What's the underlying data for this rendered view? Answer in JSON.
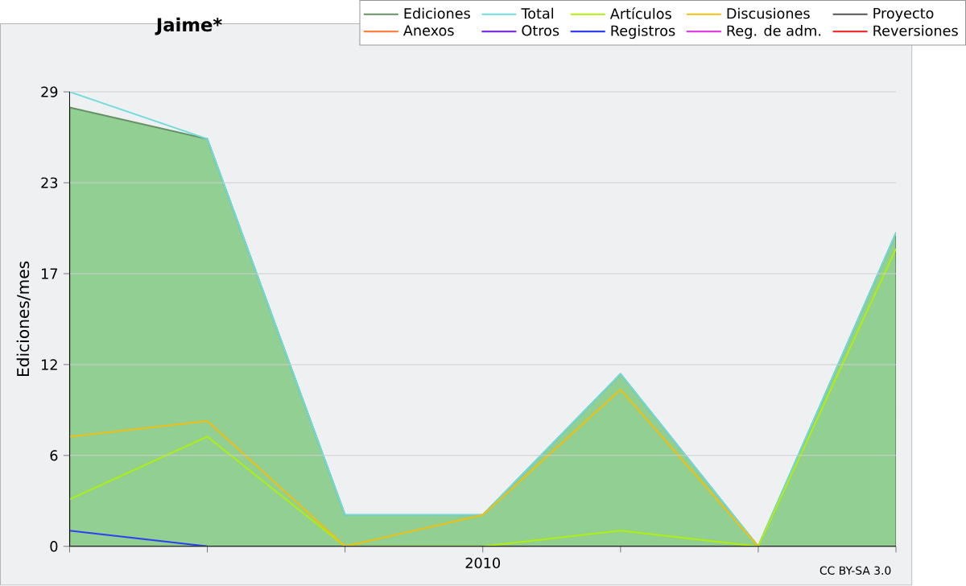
{
  "chart_data": {
    "type": "line",
    "title": "Jaime*",
    "ylabel": "Ediciones/mes",
    "annotations": [
      "CC BY-SA 3.0"
    ],
    "categories": [
      null,
      null,
      null,
      "2010",
      null,
      null,
      null
    ],
    "ylim": [
      0,
      29
    ],
    "yticks": [
      0,
      {
        "value": 5.8,
        "label": "6"
      },
      {
        "value": 11.6,
        "label": "12"
      },
      {
        "value": 17.4,
        "label": "17"
      },
      {
        "value": 23.2,
        "label": "23"
      },
      29
    ],
    "grid": "y",
    "legend": "top right",
    "marker": "none",
    "series": [
      {
        "name": "Total",
        "color": "#70dcdc",
        "values": [
          29,
          26,
          2,
          2,
          11,
          0,
          20
        ]
      },
      {
        "name": "Ediciones",
        "type": "area",
        "color": "#92cf92",
        "values": [
          28,
          26,
          2,
          2,
          11,
          0,
          20
        ]
      },
      {
        "name": "Artículos",
        "color": "#b0ee10",
        "values": [
          3,
          7,
          0,
          0,
          1,
          0,
          19
        ]
      },
      {
        "name": "Discusiones",
        "color": "#f0c010",
        "values": [
          7,
          8,
          0,
          2,
          10,
          0,
          null
        ]
      },
      {
        "name": "Proyecto",
        "color": "#555555",
        "values": [
          null,
          null,
          null,
          null,
          null,
          null,
          null
        ]
      },
      {
        "name": "Anexos",
        "color": "#ff8040",
        "values": [
          null,
          null,
          null,
          null,
          null,
          null,
          null
        ]
      },
      {
        "name": "Otros",
        "color": "#8030e0",
        "values": [
          null,
          null,
          null,
          null,
          null,
          null,
          null
        ]
      },
      {
        "name": "Registros",
        "color": "#3040f0",
        "values": [
          1,
          0,
          null,
          null,
          null,
          null,
          null
        ]
      },
      {
        "name": "Reg. de adm.",
        "color": "#e040e0",
        "values": [
          null,
          null,
          null,
          null,
          null,
          null,
          null
        ]
      },
      {
        "name": "Reversiones",
        "color": "#ee3030",
        "values": [
          null,
          null,
          null,
          null,
          null,
          null,
          null
        ]
      }
    ]
  }
}
